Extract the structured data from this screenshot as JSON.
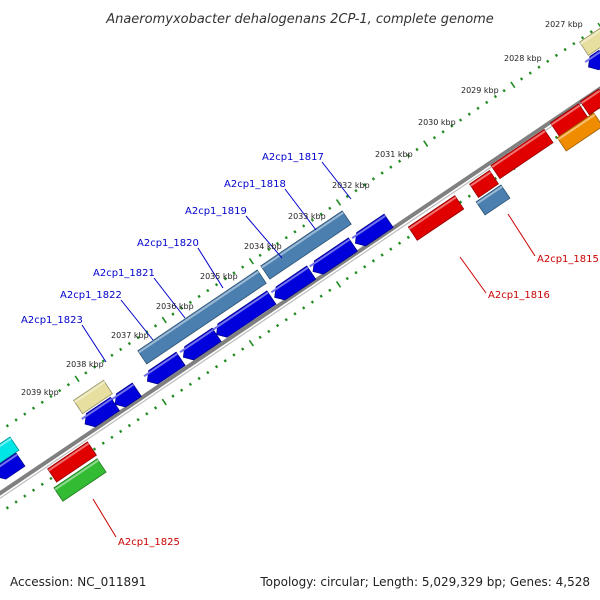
{
  "title": "Anaeromyxobacter dehalogenans 2CP-1, complete genome",
  "footer": {
    "accession": "Accession: NC_011891",
    "summary": "Topology: circular; Length: 5,029,329 bp; Genes: 4,528"
  },
  "kbp_ticks": [
    "2027 kbp",
    "2028 kbp",
    "2029 kbp",
    "2030 kbp",
    "2031 kbp",
    "2032 kbp",
    "2033 kbp",
    "2034 kbp",
    "2035 kbp",
    "2036 kbp",
    "2037 kbp",
    "2038 kbp",
    "2039 kbp"
  ],
  "gene_labels": {
    "forward": [
      "A2cp1_1817",
      "A2cp1_1818",
      "A2cp1_1819",
      "A2cp1_1820",
      "A2cp1_1821",
      "A2cp1_1822",
      "A2cp1_1823"
    ],
    "reverse": [
      "A2cp1_1815",
      "A2cp1_1816",
      "A2cp1_1825"
    ]
  },
  "colors": {
    "forward_label": "#0000cc",
    "reverse_label": "#cc0000",
    "backbone": "#808080",
    "tick": "#228b22",
    "blue_gene": "#0000dd",
    "steel_gene": "#4a7fb0",
    "red_gene": "#e00000",
    "green_gene": "#33bb33",
    "khaki_gene": "#e6dfa0",
    "orange_gene": "#f08c00",
    "cyan_gene": "#00e5e5"
  }
}
